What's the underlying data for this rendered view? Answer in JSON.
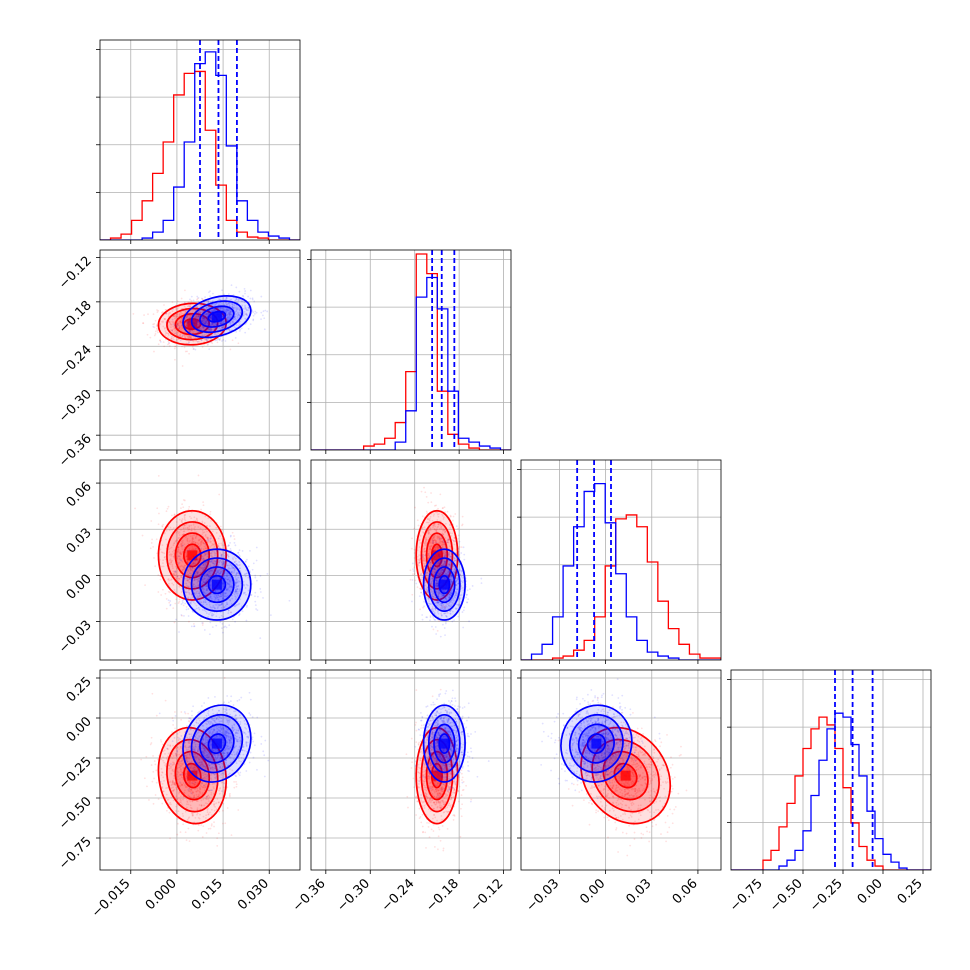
{
  "chart_data": {
    "type": "corner",
    "grid": true,
    "series": [
      {
        "color": "#ff0000",
        "means": [
          0.005,
          -0.21,
          0.013,
          -0.36
        ],
        "sds": [
          0.0055,
          0.014,
          0.0145,
          0.15
        ],
        "corr_23": -0.2,
        "corr_03": -0.1,
        "corr_01": 0.05,
        "hist_1d": [
          [
            0,
            0.01,
            0.03,
            0.1,
            0.2,
            0.34,
            0.5,
            0.74,
            0.85,
            0.86,
            0.56,
            0.28,
            0.1,
            0.04,
            0.015,
            0.01,
            0,
            0,
            0
          ],
          [
            0,
            0,
            0,
            0,
            0,
            0.02,
            0.03,
            0.06,
            0.14,
            0.4,
            1.0,
            0.9,
            0.3,
            0.08,
            0.03,
            0.01,
            0,
            0,
            0
          ],
          [
            0,
            0,
            0,
            0.01,
            0.02,
            0.05,
            0.1,
            0.22,
            0.48,
            0.72,
            0.74,
            0.68,
            0.5,
            0.3,
            0.16,
            0.08,
            0.03,
            0.01,
            0.01
          ],
          [
            0,
            0,
            0,
            0,
            0.05,
            0.1,
            0.22,
            0.34,
            0.48,
            0.62,
            0.72,
            0.78,
            0.74,
            0.62,
            0.42,
            0.24,
            0.12,
            0.05,
            0.02,
            0,
            0,
            0,
            0,
            0,
            0
          ]
        ]
      },
      {
        "color": "#0000ff",
        "means": [
          0.013,
          -0.2,
          -0.006,
          -0.16
        ],
        "sds": [
          0.0055,
          0.014,
          0.0115,
          0.12
        ],
        "corr_23": 0.05,
        "corr_03": 0.15,
        "corr_01": 0.3,
        "quantiles_16_50_84": [
          [
            0.0075,
            0.0135,
            0.0195
          ],
          [
            -0.2165,
            -0.2035,
            -0.1865
          ],
          [
            -0.0185,
            -0.0075,
            0.0035
          ],
          [
            -0.3,
            -0.19,
            -0.065
          ]
        ],
        "hist_1d": [
          [
            0,
            0,
            0,
            0,
            0.01,
            0.04,
            0.1,
            0.27,
            0.5,
            0.9,
            0.96,
            0.84,
            0.48,
            0.2,
            0.1,
            0.04,
            0.02,
            0.01,
            0
          ],
          [
            0,
            0,
            0,
            0,
            0,
            0,
            0,
            0,
            0.04,
            0.2,
            0.78,
            0.88,
            0.72,
            0.3,
            0.06,
            0.04,
            0.02,
            0.01,
            0
          ],
          [
            0,
            0.03,
            0.08,
            0.22,
            0.48,
            0.68,
            0.86,
            0.9,
            0.7,
            0.44,
            0.22,
            0.1,
            0.04,
            0.02,
            0.01,
            0,
            0,
            0,
            0
          ],
          [
            0,
            0,
            0,
            0,
            0,
            0,
            0.02,
            0.05,
            0.1,
            0.2,
            0.38,
            0.56,
            0.72,
            0.8,
            0.78,
            0.64,
            0.48,
            0.3,
            0.16,
            0.08,
            0.04,
            0.01,
            0,
            0,
            0
          ]
        ]
      }
    ],
    "parameters": [
      {
        "range": [
          -0.025,
          0.04
        ],
        "ticks": [
          -0.015,
          0.0,
          0.015,
          0.03
        ],
        "tick_labels": [
          "−0.015",
          "0.000",
          "0.015",
          "0.030"
        ]
      },
      {
        "range": [
          -0.38,
          -0.11
        ],
        "ticks": [
          -0.36,
          -0.3,
          -0.24,
          -0.18,
          -0.12
        ],
        "tick_labels": [
          "−0.36",
          "−0.30",
          "−0.24",
          "−0.18",
          "−0.12"
        ]
      },
      {
        "range": [
          -0.055,
          0.075
        ],
        "ticks": [
          -0.03,
          0.0,
          0.03,
          0.06
        ],
        "tick_labels": [
          "−0.03",
          "0.00",
          "0.03",
          "0.06"
        ]
      },
      {
        "range": [
          -0.95,
          0.3
        ],
        "ticks": [
          -0.75,
          -0.5,
          -0.25,
          0.0,
          0.25
        ],
        "tick_labels": [
          "−0.75",
          "−0.50",
          "−0.25",
          "0.00",
          "0.25"
        ]
      }
    ],
    "contour_levels_sigma": [
      0.5,
      1.0,
      1.5,
      2.0
    ]
  }
}
